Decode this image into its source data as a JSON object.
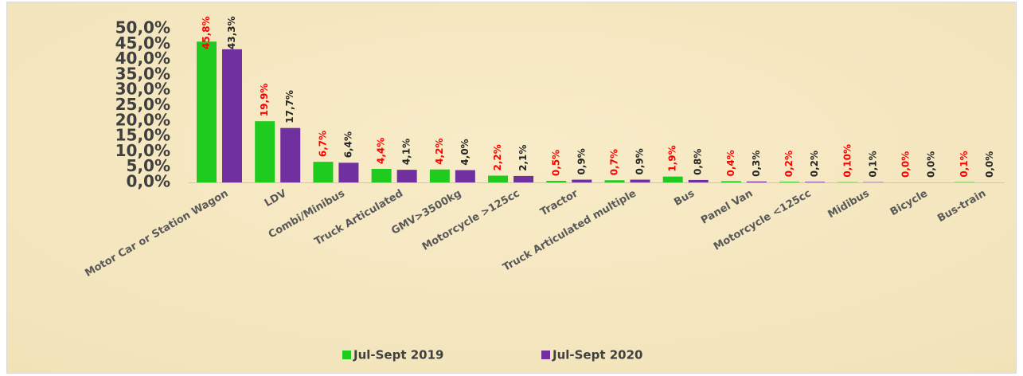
{
  "chart_data": {
    "type": "bar",
    "categories": [
      "Motor Car or Station Wagon",
      "LDV",
      "Combi/Minibus",
      "Truck Articulated",
      "GMV>3500kg",
      "Motorcycle >125cc",
      "Tractor",
      "Truck Articulated multiple",
      "Bus",
      "Panel Van",
      "Motorcycle <125cc",
      "Midibus",
      "Bicycle",
      "Bus-train"
    ],
    "series": [
      {
        "name": "Jul-Sept 2019",
        "color": "#1ecb1e",
        "label_color": "#ff0000",
        "values": [
          45.8,
          19.9,
          6.7,
          4.4,
          4.2,
          2.2,
          0.5,
          0.7,
          1.9,
          0.4,
          0.2,
          0.1,
          0.0,
          0.1
        ],
        "value_labels": [
          "45,8%",
          "19,9%",
          "6,7%",
          "4,4%",
          "4,2%",
          "2,2%",
          "0,5%",
          "0,7%",
          "1,9%",
          "0,4%",
          "0,2%",
          "0,10%",
          "0,0%",
          "0,1%"
        ]
      },
      {
        "name": "Jul-Sept 2020",
        "color": "#7030a0",
        "label_color": "#262626",
        "values": [
          43.3,
          17.7,
          6.4,
          4.1,
          4.0,
          2.1,
          0.9,
          0.9,
          0.8,
          0.3,
          0.2,
          0.1,
          0.0,
          0.0
        ],
        "value_labels": [
          "43,3%",
          "17,7%",
          "6,4%",
          "4,1%",
          "4,0%",
          "2,1%",
          "0,9%",
          "0,9%",
          "0,8%",
          "0,3%",
          "0,2%",
          "0,1%",
          "0,0%",
          "0,0%"
        ]
      }
    ],
    "ylim": [
      0,
      50
    ],
    "yticks": [
      {
        "value": 0,
        "label": "0,0%"
      },
      {
        "value": 5,
        "label": "5,0%"
      },
      {
        "value": 10,
        "label": "10,0%"
      },
      {
        "value": 15,
        "label": "15,0%"
      },
      {
        "value": 20,
        "label": "20,0%"
      },
      {
        "value": 25,
        "label": "25,0%"
      },
      {
        "value": 30,
        "label": "30,0%"
      },
      {
        "value": 35,
        "label": "35,0%"
      },
      {
        "value": 40,
        "label": "40,0%"
      },
      {
        "value": 45,
        "label": "45,0%"
      },
      {
        "value": 50,
        "label": "50,0%"
      }
    ],
    "grid": false,
    "legend": "bottom"
  }
}
